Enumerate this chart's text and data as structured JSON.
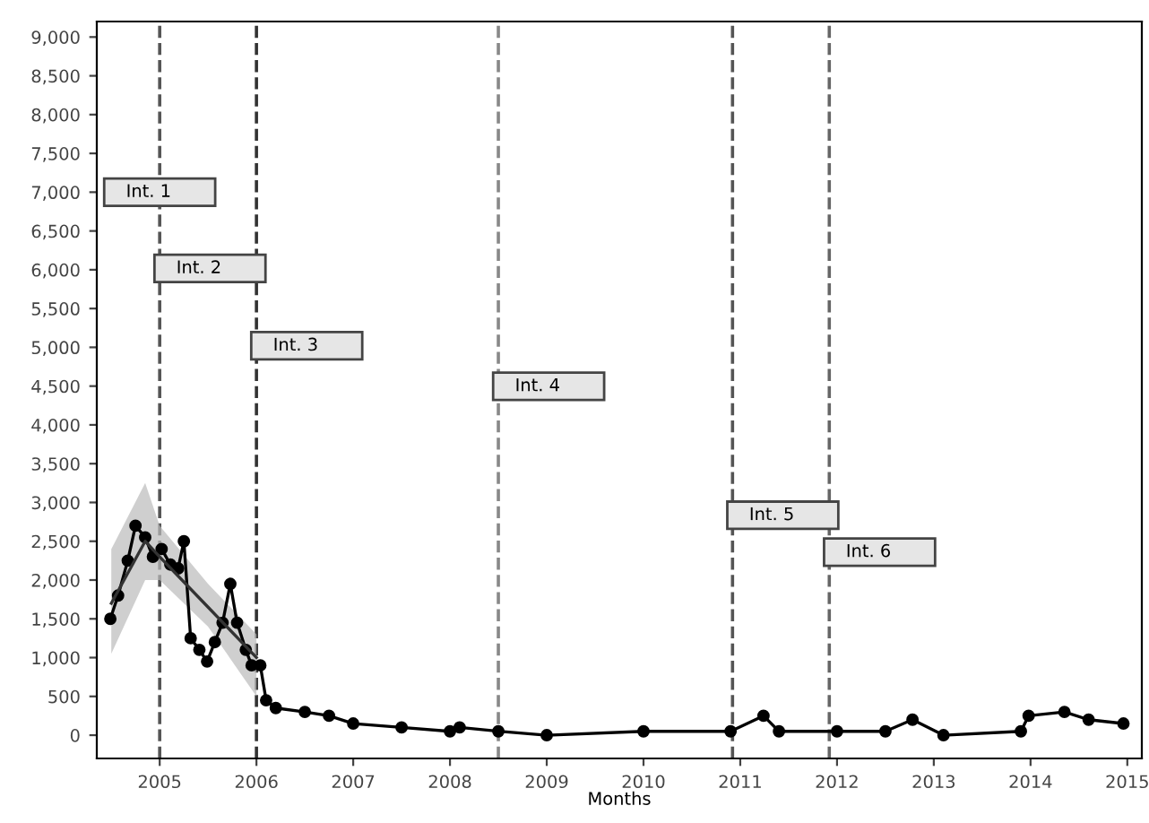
{
  "chart_data": {
    "type": "line",
    "xlabel": "Months",
    "xlim": [
      2004.35,
      2015.15
    ],
    "xticks": [
      2005,
      2006,
      2007,
      2008,
      2009,
      2010,
      2011,
      2012,
      2013,
      2014,
      2015
    ],
    "ylim": [
      -300,
      9200
    ],
    "yticks": [
      0,
      500,
      {
        "value": 1000,
        "label": "1,000"
      },
      {
        "value": 1500,
        "label": "1,500"
      },
      {
        "value": 2000,
        "label": "2,000"
      },
      {
        "value": 2500,
        "label": "2,500"
      },
      {
        "value": 3000,
        "label": "3,000"
      },
      {
        "value": 3500,
        "label": "3,500"
      },
      {
        "value": 4000,
        "label": "4,000"
      },
      {
        "value": 4500,
        "label": "4,500"
      },
      {
        "value": 5000,
        "label": "5,000"
      },
      {
        "value": 5500,
        "label": "5,500"
      },
      {
        "value": 6000,
        "label": "6,000"
      },
      {
        "value": 6500,
        "label": "6,500"
      },
      {
        "value": 7000,
        "label": "7,000"
      },
      {
        "value": 7500,
        "label": "7,500"
      },
      {
        "value": 8000,
        "label": "8,000"
      },
      {
        "value": 8500,
        "label": "8,500"
      },
      {
        "value": 9000,
        "label": "9,000"
      }
    ],
    "grid": false,
    "series": [
      {
        "color": "#000000",
        "marker": "circle",
        "x": [
          2004.49,
          2004.57,
          2004.67,
          2004.75,
          2004.85,
          2004.93,
          2005.02,
          2005.11,
          2005.19,
          2005.25,
          2005.32,
          2005.41,
          2005.49,
          2005.57,
          2005.65,
          2005.73,
          2005.8,
          2005.89,
          2005.95,
          2006.04,
          2006.1,
          2006.2,
          2006.5,
          2006.75,
          2007.0,
          2007.5,
          2008.0,
          2008.1,
          2008.5,
          2009.0,
          2010.0,
          2010.9,
          2011.24,
          2011.4,
          2012.0,
          2012.5,
          2012.78,
          2013.1,
          2013.9,
          2013.98,
          2014.35,
          2014.6,
          2014.96
        ],
        "values": [
          1500,
          1800,
          2250,
          2700,
          2550,
          2300,
          2400,
          2200,
          2150,
          2500,
          1250,
          1100,
          950,
          1200,
          1450,
          1950,
          1450,
          1100,
          900,
          900,
          450,
          350,
          300,
          250,
          150,
          100,
          50,
          100,
          50,
          0,
          50,
          50,
          250,
          50,
          50,
          50,
          200,
          0,
          50,
          250,
          300,
          200,
          150
        ]
      },
      {
        "color": "#333333",
        "marker": "none",
        "x": [
          2004.5,
          2004.85,
          2005.0,
          2005.5,
          2006.0
        ],
        "values": [
          1700,
          2500,
          2300,
          1650,
          1000
        ],
        "lower": [
          1050,
          2000,
          2000,
          1400,
          500
        ],
        "upper": [
          2400,
          3250,
          2700,
          1950,
          1300
        ]
      }
    ],
    "annotations": [
      {
        "text": "Int. 1",
        "x": 2005,
        "y": 7000
      }
    ],
    "ref_lines": [
      {
        "axis": "x",
        "value": 2005,
        "label": "Int. 2",
        "color": "#555555",
        "line_style": "dashed"
      },
      {
        "axis": "x",
        "value": 2006,
        "label": "Int. 3",
        "color": "#333333",
        "line_style": "dashed"
      },
      {
        "axis": "x",
        "value": 2008.5,
        "label": "Int. 4",
        "color": "#888888",
        "line_style": "dashed"
      },
      {
        "axis": "x",
        "value": 2010.92,
        "label": "Int. 5",
        "color": "#555555",
        "line_style": "dashed"
      },
      {
        "axis": "x",
        "value": 2011.92,
        "label": "Int. 6",
        "color": "#666666",
        "line_style": "dashed"
      }
    ]
  }
}
